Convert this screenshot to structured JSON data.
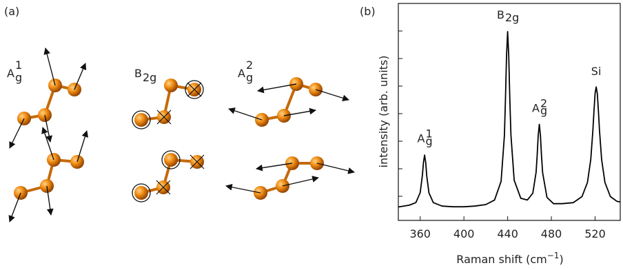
{
  "panel_labels": [
    "(a)",
    "(b)"
  ],
  "modes": [
    {
      "base": "A",
      "sub": "g",
      "sup": "1"
    },
    {
      "base": "B",
      "sub": "2g",
      "sup": null
    },
    {
      "base": "A",
      "sub": "g",
      "sup": "2"
    }
  ],
  "chart_data": {
    "type": "line",
    "x_label": {
      "text": "Raman shift (cm",
      "sup": "−1",
      "tail": ")"
    },
    "y_label": "intensity (arb. units)",
    "xlim": [
      340,
      543
    ],
    "ylim": [
      0,
      100
    ],
    "xticks": [
      360,
      400,
      440,
      480,
      520
    ],
    "color": "#000000",
    "x": [
      340,
      350,
      356,
      360,
      362,
      363,
      364,
      365,
      366,
      368,
      372,
      380,
      390,
      400,
      410,
      420,
      428,
      434,
      437,
      438,
      439,
      440,
      441,
      442,
      443,
      446,
      452,
      458,
      463,
      466,
      467,
      468,
      469,
      470,
      471,
      472,
      476,
      482,
      490,
      500,
      508,
      513,
      516,
      518,
      519,
      520,
      521,
      522,
      523,
      524,
      526,
      529,
      534,
      540,
      543
    ],
    "values": [
      6.2,
      7.0,
      8.2,
      12.8,
      20.7,
      26.8,
      30.1,
      26.8,
      20.6,
      12.7,
      8.2,
      6.6,
      6.3,
      6.3,
      6.6,
      7.3,
      9.4,
      18,
      39,
      55.4,
      75.8,
      87,
      75.8,
      55.6,
      39.3,
      18.5,
      10.2,
      9.4,
      12.5,
      22.2,
      29.7,
      39.3,
      44.3,
      39.1,
      29.5,
      21.9,
      10.6,
      7.7,
      7.7,
      8.2,
      11,
      17.5,
      28,
      41.5,
      50.5,
      58.5,
      61.5,
      58.5,
      50.5,
      41.5,
      28,
      17.5,
      11,
      8.8,
      8.5
    ],
    "annotations": [
      {
        "base": "A",
        "sub": "g",
        "sup": "1",
        "x": 364,
        "y": 36
      },
      {
        "base": "B",
        "sub": "2g",
        "sup": null,
        "x": 440,
        "y": 93
      },
      {
        "base": "A",
        "sub": "g",
        "sup": "2",
        "x": 469,
        "y": 50
      },
      {
        "base": "Si",
        "sub": null,
        "sup": null,
        "x": 521,
        "y": 67
      }
    ]
  }
}
